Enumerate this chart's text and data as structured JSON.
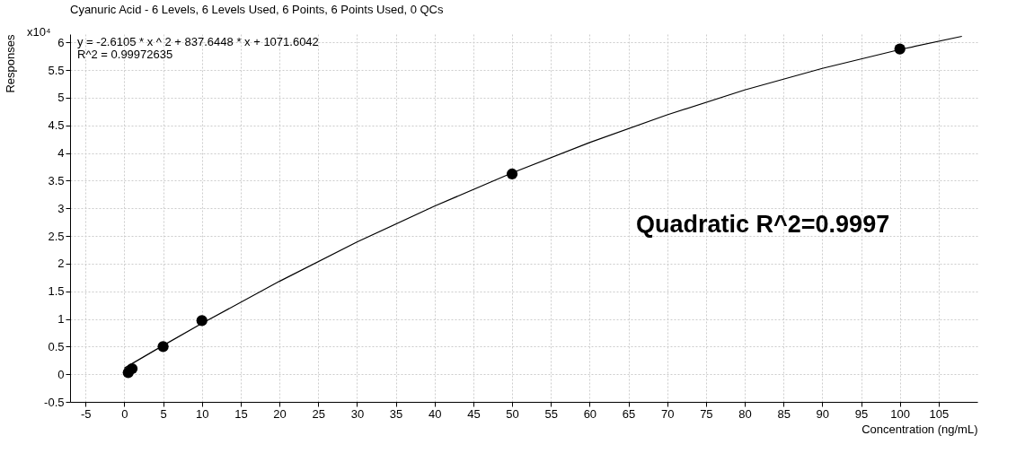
{
  "chart_data": {
    "type": "scatter",
    "title": "Cyanuric Acid - 6 Levels, 6 Levels Used, 6 Points, 6 Points Used, 0 QCs",
    "xlabel": "Concentration (ng/mL)",
    "ylabel": "Responses",
    "annotations": [
      "x10⁴",
      "y = -2.6105 * x ^ 2  + 837.6448 * x  + 1071.6042",
      "R^2 = 0.99972635",
      "Quadratic R^2=0.9997"
    ],
    "series": [
      {
        "color": "#000000",
        "marker": "circle",
        "x": [
          0.5,
          1,
          5,
          10,
          50,
          100
        ],
        "values": [
          0.03,
          0.1,
          0.5,
          0.97,
          3.62,
          5.88
        ]
      },
      {
        "type": "line",
        "color": "#000000",
        "marker": "none",
        "x": [
          0,
          5,
          10,
          20,
          30,
          40,
          50,
          60,
          70,
          80,
          90,
          100,
          108
        ],
        "values": [
          0.11,
          0.52,
          0.92,
          1.68,
          2.39,
          3.04,
          3.64,
          4.19,
          4.69,
          5.14,
          5.53,
          5.87,
          6.11
        ]
      }
    ],
    "xlim": [
      -7,
      110
    ],
    "ylim": [
      -0.5,
      6.15
    ],
    "xticks": [
      -5,
      0,
      5,
      10,
      15,
      20,
      25,
      30,
      35,
      40,
      45,
      50,
      55,
      60,
      65,
      70,
      75,
      80,
      85,
      90,
      95,
      100,
      105
    ],
    "yticks": [
      -0.5,
      0,
      0.5,
      1,
      1.5,
      2,
      2.5,
      3,
      3.5,
      4,
      4.5,
      5,
      5.5,
      6
    ],
    "grid": true,
    "legend": false
  }
}
